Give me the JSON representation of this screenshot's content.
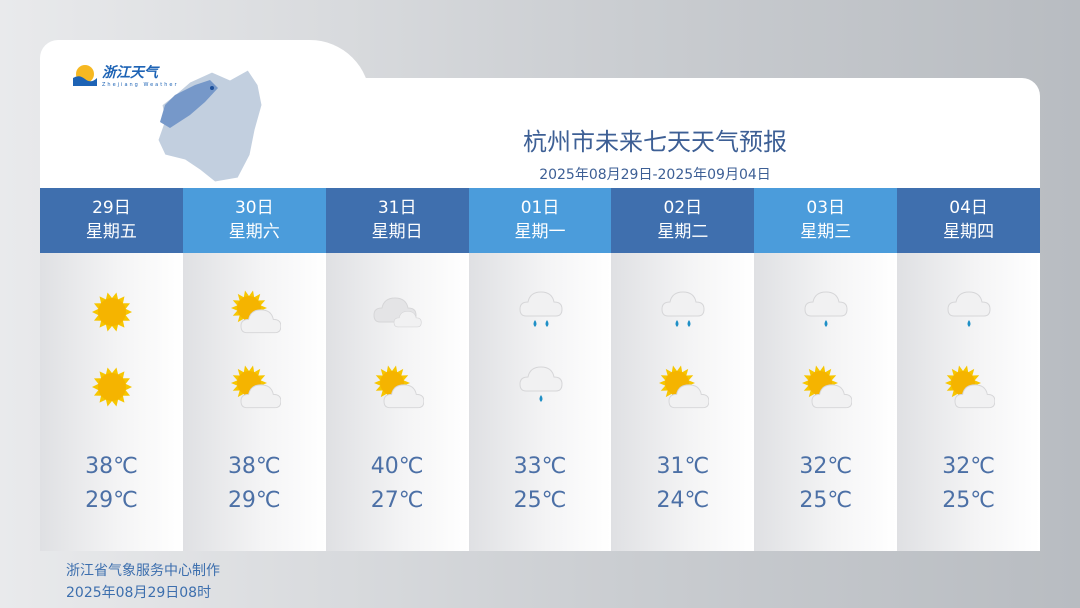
{
  "logo": {
    "text": "浙江天气",
    "sub": "Zhejiang Weather"
  },
  "title": "杭州市未来七天天气预报",
  "subtitle": "2025年08月29日-2025年09月04日",
  "days": [
    {
      "date": "29日",
      "weekday": "星期五",
      "day_icon": "sunny",
      "night_icon": "sunny",
      "high": "38℃",
      "low": "29℃"
    },
    {
      "date": "30日",
      "weekday": "星期六",
      "day_icon": "partly-cloudy",
      "night_icon": "partly-cloudy",
      "high": "38℃",
      "low": "29℃"
    },
    {
      "date": "31日",
      "weekday": "星期日",
      "day_icon": "cloudy",
      "night_icon": "partly-cloudy",
      "high": "40℃",
      "low": "27℃"
    },
    {
      "date": "01日",
      "weekday": "星期一",
      "day_icon": "moderate-rain",
      "night_icon": "light-rain",
      "high": "33℃",
      "low": "25℃"
    },
    {
      "date": "02日",
      "weekday": "星期二",
      "day_icon": "moderate-rain",
      "night_icon": "partly-cloudy",
      "high": "31℃",
      "low": "24℃"
    },
    {
      "date": "03日",
      "weekday": "星期三",
      "day_icon": "light-rain",
      "night_icon": "partly-cloudy",
      "high": "32℃",
      "low": "25℃"
    },
    {
      "date": "04日",
      "weekday": "星期四",
      "day_icon": "light-rain",
      "night_icon": "partly-cloudy",
      "high": "32℃",
      "low": "25℃"
    }
  ],
  "footer": {
    "producer": "浙江省气象服务中心制作",
    "issued": "2025年08月29日08时"
  },
  "colors": {
    "header_dark": "#3f6fae",
    "header_light": "#4b9cdb",
    "text": "#4c70a6"
  }
}
